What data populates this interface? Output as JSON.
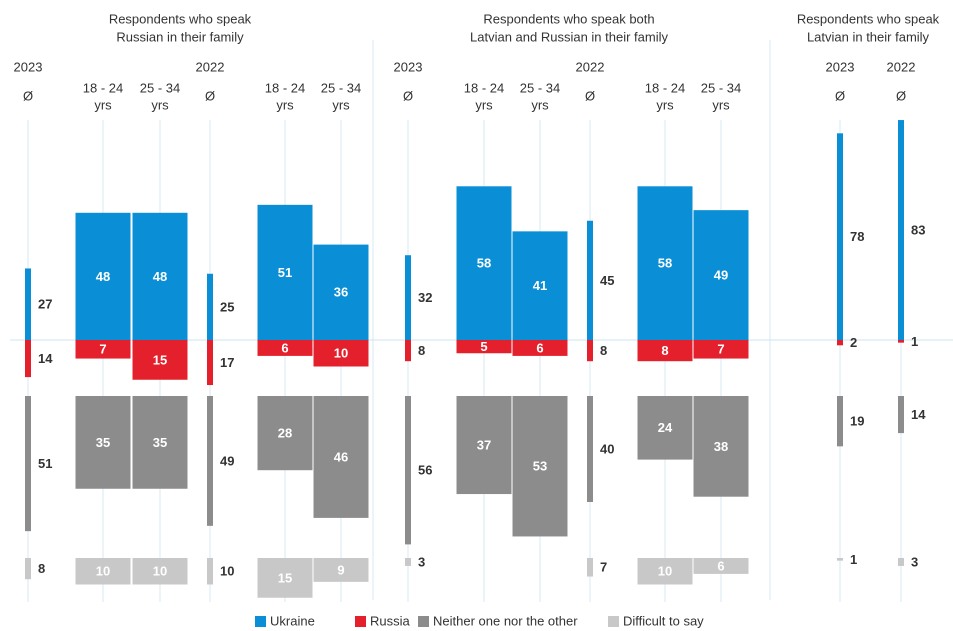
{
  "chart_data": {
    "type": "diverging-bar",
    "series": [
      {
        "name": "Ukraine",
        "color": "#0a8fd6"
      },
      {
        "name": "Russia",
        "color": "#e3202c"
      },
      {
        "name": "Neither one nor the other",
        "color": "#8c8c8c"
      },
      {
        "name": "Difficult to say",
        "color": "#c8c8c8"
      }
    ],
    "panels": [
      {
        "title": [
          "Respondents who speak",
          "Russian in their family"
        ],
        "groups": [
          {
            "year": "2023",
            "columns": [
              {
                "label": [
                  "Ø"
                ],
                "values": [
                  27,
                  14,
                  51,
                  8
                ]
              },
              {
                "label": [
                  "18 - 24",
                  "yrs"
                ],
                "values": [
                  48,
                  7,
                  35,
                  10
                ]
              },
              {
                "label": [
                  "25 - 34",
                  "yrs"
                ],
                "values": [
                  48,
                  15,
                  35,
                  10
                ]
              }
            ]
          },
          {
            "year": "2022",
            "columns": [
              {
                "label": [
                  "Ø"
                ],
                "values": [
                  25,
                  17,
                  49,
                  10
                ]
              },
              {
                "label": [
                  "18 - 24",
                  "yrs"
                ],
                "values": [
                  51,
                  6,
                  28,
                  15
                ]
              },
              {
                "label": [
                  "25 - 34",
                  "yrs"
                ],
                "values": [
                  36,
                  10,
                  46,
                  9
                ]
              }
            ]
          }
        ]
      },
      {
        "title": [
          "Respondents who speak both",
          "Latvian and Russian in their family"
        ],
        "groups": [
          {
            "year": "2023",
            "columns": [
              {
                "label": [
                  "Ø"
                ],
                "values": [
                  32,
                  8,
                  56,
                  3
                ]
              },
              {
                "label": [
                  "18 - 24",
                  "yrs"
                ],
                "values": [
                  58,
                  5,
                  37,
                  null
                ]
              },
              {
                "label": [
                  "25 - 34",
                  "yrs"
                ],
                "values": [
                  41,
                  6,
                  53,
                  null
                ]
              }
            ]
          },
          {
            "year": "2022",
            "columns": [
              {
                "label": [
                  "Ø"
                ],
                "values": [
                  45,
                  8,
                  40,
                  7
                ]
              },
              {
                "label": [
                  "18 - 24",
                  "yrs"
                ],
                "values": [
                  58,
                  8,
                  24,
                  10
                ]
              },
              {
                "label": [
                  "25 - 34",
                  "yrs"
                ],
                "values": [
                  49,
                  7,
                  38,
                  6
                ]
              }
            ]
          }
        ]
      },
      {
        "title": [
          "Respondents who speak",
          "Latvian in their family"
        ],
        "groups": [
          {
            "year": "2023",
            "columns": [
              {
                "label": [
                  "Ø"
                ],
                "values": [
                  78,
                  2,
                  19,
                  1
                ]
              }
            ]
          },
          {
            "year": "2022",
            "columns": [
              {
                "label": [
                  "Ø"
                ],
                "values": [
                  83,
                  1,
                  14,
                  3
                ]
              }
            ]
          }
        ]
      }
    ]
  }
}
